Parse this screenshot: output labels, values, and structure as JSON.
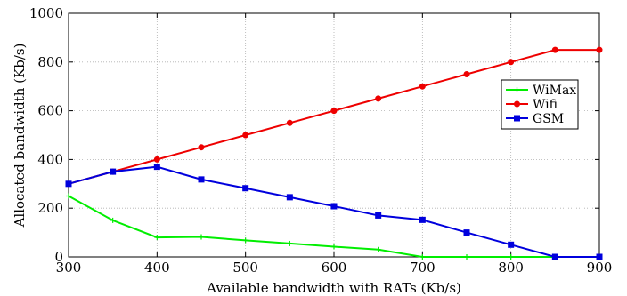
{
  "chart_data": {
    "type": "line",
    "xlabel": "Available bandwidth with RATs (Kb/s)",
    "ylabel": "Allocated bandwidth (Kb/s)",
    "xlim": [
      300,
      900
    ],
    "ylim": [
      0,
      1000
    ],
    "xticks": [
      300,
      400,
      500,
      600,
      700,
      800,
      900
    ],
    "yticks": [
      0,
      200,
      400,
      600,
      800,
      1000
    ],
    "grid": true,
    "legend_position": "right",
    "x": [
      300,
      350,
      400,
      450,
      500,
      550,
      600,
      650,
      700,
      750,
      800,
      850,
      900
    ],
    "series": [
      {
        "name": "WiMax",
        "color": "#00ee00",
        "marker": "plus",
        "values": [
          250,
          150,
          80,
          82,
          68,
          55,
          42,
          30,
          0,
          0,
          0,
          0,
          0
        ]
      },
      {
        "name": "Wifi",
        "color": "#ee0000",
        "marker": "circle",
        "values": [
          300,
          350,
          400,
          450,
          500,
          550,
          600,
          650,
          700,
          750,
          800,
          850,
          850
        ]
      },
      {
        "name": "GSM",
        "color": "#0000dd",
        "marker": "square",
        "values": [
          300,
          350,
          370,
          318,
          282,
          245,
          208,
          170,
          152,
          100,
          50,
          0,
          0
        ]
      }
    ]
  }
}
